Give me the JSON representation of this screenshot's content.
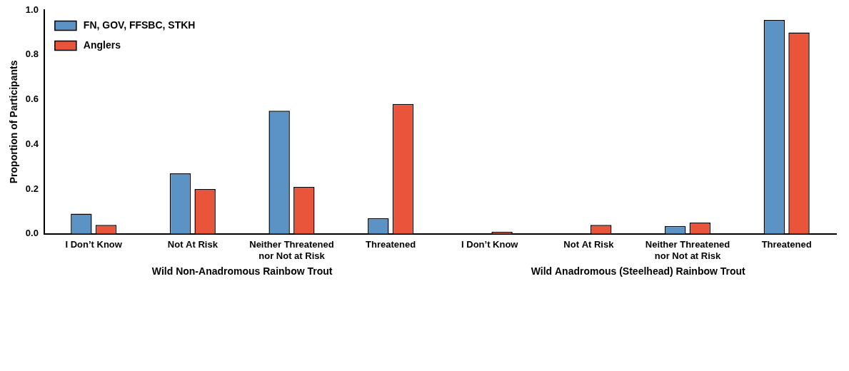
{
  "chart_data": {
    "type": "bar",
    "categories": [
      "I Don’t Know",
      "Not At Risk",
      "Neither Threatened nor Not at Risk",
      "Threatened",
      "I Don’t Know",
      "Not At Risk",
      "Neither Threatened nor Not at Risk",
      "Threatened"
    ],
    "group_labels": [
      "Wild Non-Anadromous Rainbow Trout",
      "Wild Anadromous (Steelhead) Rainbow Trout"
    ],
    "series": [
      {
        "name": "FN, GOV, FFSBC, STKH",
        "color": "#5b94c4",
        "values": [
          0.09,
          0.27,
          0.55,
          0.07,
          0,
          0,
          0.035,
          0.955
        ]
      },
      {
        "name": "Anglers",
        "color": "#e8553a",
        "values": [
          0.04,
          0.2,
          0.21,
          0.58,
          0.01,
          0.04,
          0.05,
          0.9
        ]
      }
    ],
    "y_label": "Proportion of Participants",
    "ylim": [
      0,
      1
    ],
    "yticks": [
      {
        "value": 0,
        "label": "0.0"
      },
      0.2,
      0.4,
      0.6,
      0.8,
      {
        "value": 1,
        "label": "1.0"
      }
    ],
    "grid": false,
    "legend": "upper left"
  }
}
